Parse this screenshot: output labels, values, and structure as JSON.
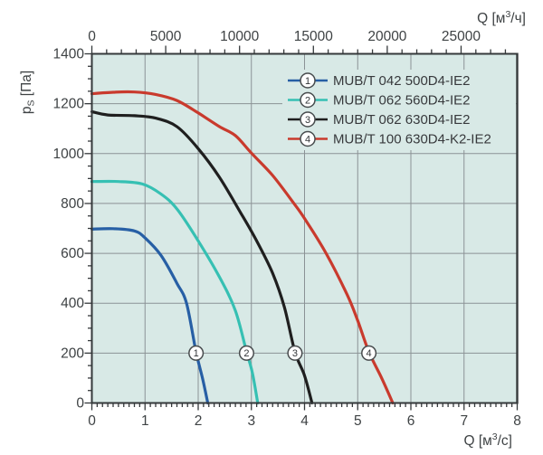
{
  "chart_data": {
    "type": "line",
    "title": "",
    "description": "Fan performance curves: static pressure vs airflow",
    "plot_bg_color": "#d8e9e6",
    "grid_color": "#8b9295",
    "axis_color": "#35393b",
    "text_color": "#3e4244",
    "grid": true,
    "legend_position": "top-right-inside",
    "x_axis_bottom": {
      "label_parts": [
        {
          "t": "Q [м"
        },
        {
          "t": "3",
          "sup": true
        },
        {
          "t": "/с]"
        }
      ],
      "unit": "м³/с",
      "min": 0,
      "max": 8,
      "tick_values": [
        0,
        1,
        2,
        3,
        4,
        5,
        6,
        7,
        8
      ],
      "tick_labels": [
        "0",
        "1",
        "2",
        "3",
        "4",
        "5",
        "6",
        "7",
        "8"
      ],
      "minor_step": 0.1
    },
    "x_axis_top": {
      "label_parts": [
        {
          "t": "Q [м"
        },
        {
          "t": "3",
          "sup": true
        },
        {
          "t": "/ч]"
        }
      ],
      "unit": "м³/ч",
      "conversion_from_bottom": 3600,
      "min": 0,
      "max": 28800,
      "tick_values": [
        0,
        5000,
        10000,
        15000,
        20000,
        25000
      ],
      "tick_labels": [
        "0",
        "5000",
        "10000",
        "15000",
        "20000",
        "25000"
      ],
      "minor_step": 1000
    },
    "y_axis": {
      "label_parts": [
        {
          "t": "p"
        },
        {
          "t": "S",
          "sub": true
        },
        {
          "t": " [Па]"
        }
      ],
      "unit": "Па",
      "min": 0,
      "max": 1400,
      "tick_values": [
        0,
        200,
        400,
        600,
        800,
        1000,
        1200,
        1400
      ],
      "tick_labels": [
        "0",
        "200",
        "400",
        "600",
        "800",
        "1000",
        "1200",
        "1400"
      ],
      "minor_step": 50
    },
    "series": [
      {
        "id": "1",
        "name": "MUB/T 042 500D4-IE2",
        "color": "#275fa5",
        "marker": [
          1.96,
          200
        ],
        "points": [
          [
            0,
            697
          ],
          [
            0.4,
            699
          ],
          [
            0.8,
            690
          ],
          [
            1.0,
            662
          ],
          [
            1.3,
            592
          ],
          [
            1.6,
            480
          ],
          [
            1.78,
            400
          ],
          [
            1.96,
            205
          ],
          [
            2.08,
            100
          ],
          [
            2.18,
            0
          ]
        ]
      },
      {
        "id": "2",
        "name": "MUB/T 062 560D4-IE2",
        "color": "#36c0b3",
        "marker": [
          2.91,
          200
        ],
        "points": [
          [
            0,
            888
          ],
          [
            0.5,
            888
          ],
          [
            0.95,
            878
          ],
          [
            1.3,
            838
          ],
          [
            1.6,
            778
          ],
          [
            2.0,
            650
          ],
          [
            2.4,
            505
          ],
          [
            2.7,
            370
          ],
          [
            2.91,
            205
          ],
          [
            3.02,
            120
          ],
          [
            3.12,
            0
          ]
        ]
      },
      {
        "id": "3",
        "name": "MUB/T 062 630D4-IE2",
        "color": "#1f1f1f",
        "marker": [
          3.82,
          200
        ],
        "points": [
          [
            0,
            1168
          ],
          [
            0.3,
            1155
          ],
          [
            0.8,
            1152
          ],
          [
            1.2,
            1142
          ],
          [
            1.6,
            1108
          ],
          [
            2.0,
            1020
          ],
          [
            2.4,
            905
          ],
          [
            2.8,
            762
          ],
          [
            3.1,
            650
          ],
          [
            3.4,
            520
          ],
          [
            3.62,
            385
          ],
          [
            3.82,
            205
          ],
          [
            4.0,
            110
          ],
          [
            4.14,
            0
          ]
        ]
      },
      {
        "id": "4",
        "name": "MUB/T 100 630D4-K2-IE2",
        "color": "#c93a2d",
        "marker": [
          5.21,
          200
        ],
        "points": [
          [
            0,
            1240
          ],
          [
            0.4,
            1246
          ],
          [
            0.8,
            1247
          ],
          [
            1.2,
            1237
          ],
          [
            1.6,
            1213
          ],
          [
            2.0,
            1163
          ],
          [
            2.4,
            1108
          ],
          [
            2.7,
            1072
          ],
          [
            3.0,
            1002
          ],
          [
            3.4,
            912
          ],
          [
            3.8,
            800
          ],
          [
            4.0,
            740
          ],
          [
            4.4,
            602
          ],
          [
            4.8,
            435
          ],
          [
            5.0,
            330
          ],
          [
            5.21,
            205
          ],
          [
            5.45,
            100
          ],
          [
            5.66,
            0
          ]
        ]
      }
    ],
    "curve_marker_pressure": 200
  }
}
